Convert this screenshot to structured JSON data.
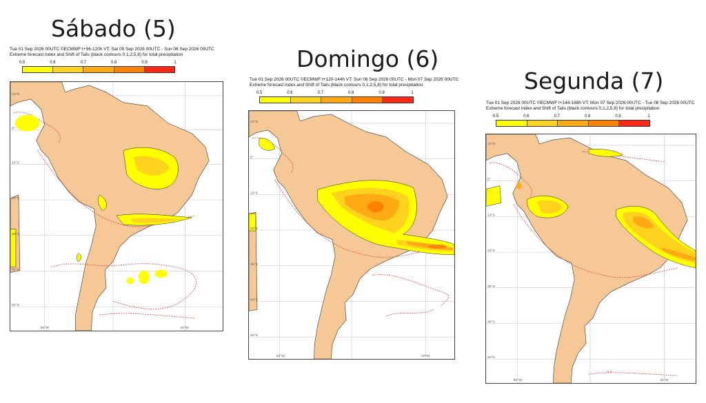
{
  "panels": [
    {
      "title": "Sábado (5)",
      "header_line1": "Tue 01 Sep 2026 00UTC ©ECMWF t+96-120h  VT: Sat 05 Sep 2026 00UTC - Sun 06 Sep 2026 00UTC",
      "header_line2": "Extreme forecast index and Shift of Tails (black contours 0,1,2,5,8) for total precipitation"
    },
    {
      "title": "Domingo (6)",
      "header_line1": "Tue 01 Sep 2026 00UTC ©ECMWF t+120-144h  VT: Sun 06 Sep 2026 00UTC - Mon 07 Sep 2026 00UTC",
      "header_line2": "Extreme forecast index and Shift of Tails (black contours 0,1,2,5,8) for total precipitation"
    },
    {
      "title": "Segunda (7)",
      "header_line1": "Tue 01 Sep 2026 00UTC ©ECMWF t+144-168h  VT: Mon 07 Sep 2026 00UTC - Tue 08 Sep 2026 00UTC",
      "header_line2": "Extreme forecast index and Shift of Tails (black contours 0,1,2,5,8) for total precipitation"
    }
  ],
  "colorbar": {
    "labels": [
      "0.5",
      "0.6",
      "0.7",
      "0.8",
      "0.9",
      "1"
    ],
    "colors": [
      "#ffff00",
      "#ffd21e",
      "#ffaa14",
      "#ff8200",
      "#ff2814"
    ]
  },
  "map_labels": {
    "lon_60w": "60°W",
    "lon_40w": "40°W",
    "lat_10n": "10°N",
    "lat_0": "0°",
    "lat_10s": "10°S",
    "lat_20s": "20°S",
    "lat_30s": "30°S",
    "lat_40s": "40°S",
    "lat_50s": "50°S",
    "contour_value": "-0.3"
  },
  "colors": {
    "land": "#f5c896",
    "ocean": "#ffffff",
    "contour": "#e03c3c",
    "outline": "#202020"
  }
}
